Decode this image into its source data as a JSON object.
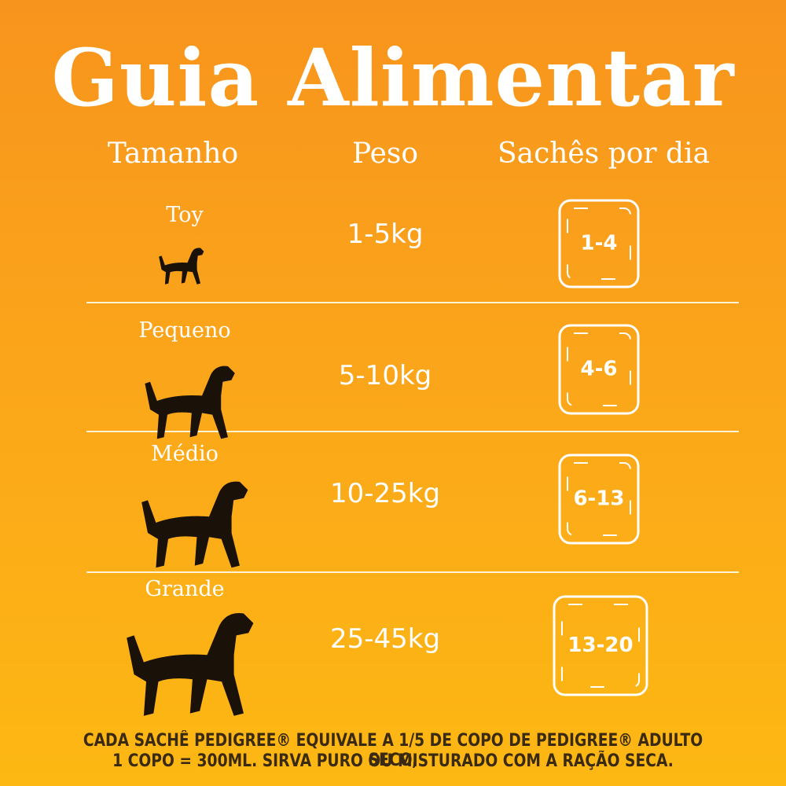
{
  "header": {
    "title": "Guia Alimentar"
  },
  "table": {
    "columns": [
      "Tamanho",
      "Peso",
      "Sachês por dia"
    ],
    "rows": [
      [
        "Toy",
        "1-5kg",
        "1-4"
      ],
      [
        "Pequeno",
        "5-10kg",
        "4-6"
      ],
      [
        "Médio",
        "10-25kg",
        "6-13"
      ],
      [
        "Grande",
        "25-45kg",
        "13-20"
      ]
    ]
  },
  "footnote": [
    "CADA SACHÊ PEDIGREE® EQUIVALE A 1/5 DE COPO DE PEDIGREE® ADULTO SECO,",
    "1 COPO = 300ML. SIRVA PURO OU MISTURADO COM A RAÇÃO SECA."
  ]
}
